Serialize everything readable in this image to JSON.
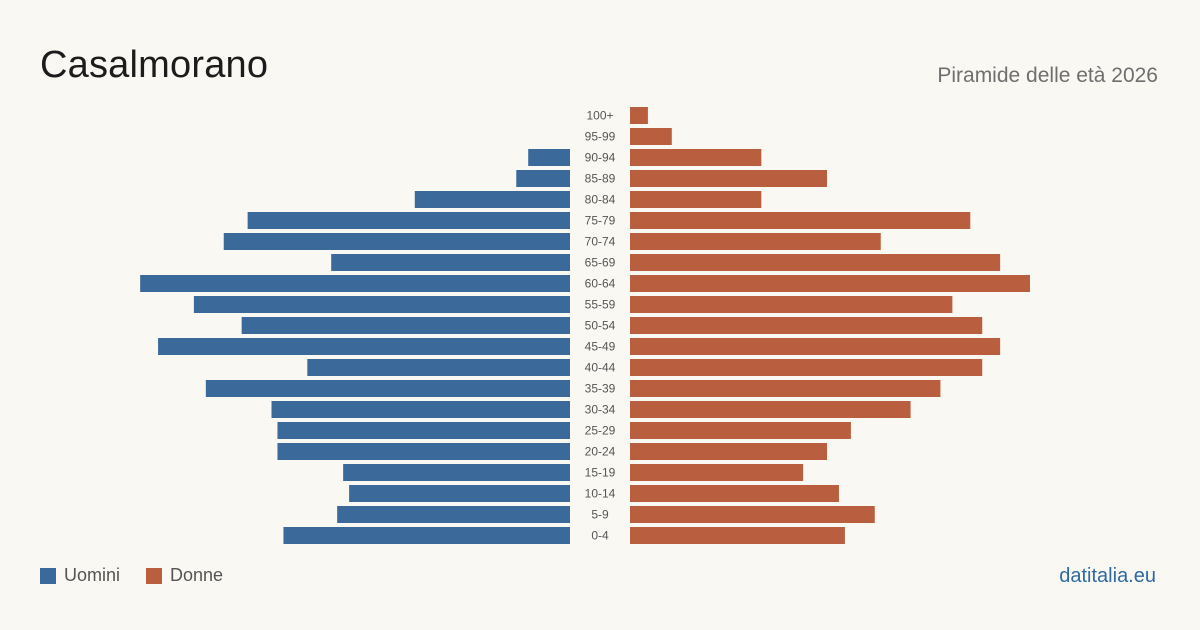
{
  "header": {
    "title": "Casalmorano",
    "subtitle": "Piramide delle età 2026"
  },
  "footer": {
    "source": "datitalia.eu"
  },
  "colors": {
    "men": "#3b6a9a",
    "women": "#b95e3e"
  },
  "chart_data": {
    "type": "bar",
    "orientation": "horizontal-pyramid",
    "title": "Casalmorano",
    "subtitle": "Piramide delle età 2026",
    "categories": [
      "100+",
      "95-99",
      "90-94",
      "85-89",
      "80-84",
      "75-79",
      "70-74",
      "65-69",
      "60-64",
      "55-59",
      "50-54",
      "45-49",
      "40-44",
      "35-39",
      "30-34",
      "25-29",
      "20-24",
      "15-19",
      "10-14",
      "5-9",
      "0-4"
    ],
    "series": [
      {
        "name": "Uomini",
        "color": "#3b6a9a",
        "values": [
          0,
          0,
          7,
          9,
          26,
          54,
          58,
          40,
          72,
          63,
          55,
          69,
          44,
          61,
          50,
          49,
          49,
          38,
          37,
          39,
          48
        ]
      },
      {
        "name": "Donne",
        "color": "#b95e3e",
        "values": [
          3,
          7,
          22,
          33,
          22,
          57,
          42,
          62,
          67,
          54,
          59,
          62,
          59,
          52,
          47,
          37,
          33,
          29,
          35,
          41,
          36
        ]
      }
    ],
    "legend_position": "bottom-left",
    "grid": false
  }
}
